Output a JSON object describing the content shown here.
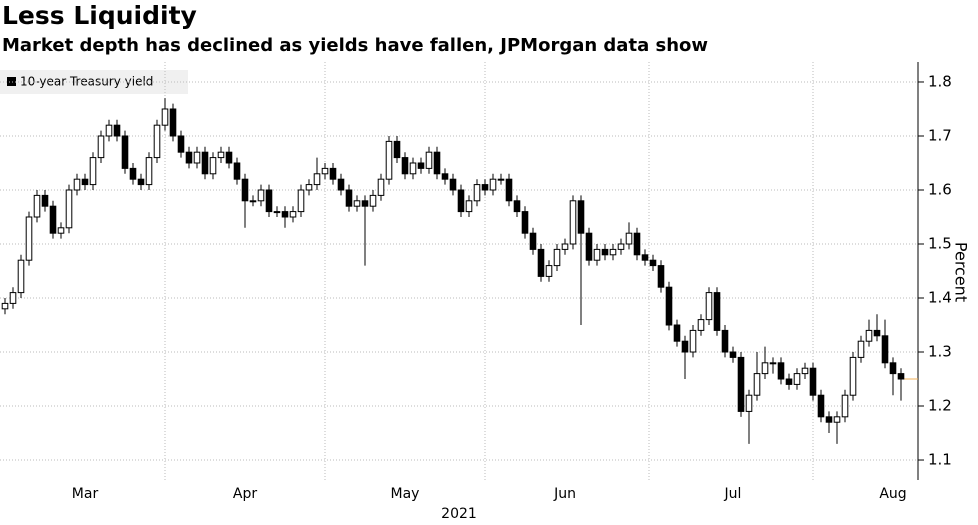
{
  "chart_data": {
    "type": "candlestick",
    "title": "Less Liquidity",
    "subtitle": "Market depth has declined as yields have fallen, JPMorgan data show",
    "ylabel": "Percent",
    "xlabel": "2021",
    "series": [
      {
        "name": "10-year Treasury yield",
        "color": "#000000"
      }
    ],
    "up_color": "#ffffff",
    "down_color": "#000000",
    "last_line_color": "#f0b25a",
    "categories": [
      null,
      null,
      null,
      null,
      null,
      null,
      null,
      null,
      null,
      null,
      "Mar",
      null,
      null,
      null,
      null,
      null,
      null,
      null,
      null,
      null,
      null,
      null,
      null,
      null,
      null,
      null,
      null,
      null,
      null,
      null,
      "Apr",
      null,
      null,
      null,
      null,
      null,
      null,
      null,
      null,
      null,
      null,
      null,
      null,
      null,
      null,
      null,
      null,
      null,
      null,
      null,
      "May",
      null,
      null,
      null,
      null,
      null,
      null,
      null,
      null,
      null,
      null,
      null,
      null,
      null,
      null,
      null,
      null,
      null,
      null,
      null,
      "Jun",
      null,
      null,
      null,
      null,
      null,
      null,
      null,
      null,
      null,
      null,
      null,
      null,
      null,
      null,
      null,
      null,
      null,
      null,
      null,
      null,
      "Jul",
      null,
      null,
      null,
      null,
      null,
      null,
      null,
      null,
      null,
      null,
      null,
      null,
      null,
      null,
      null,
      null,
      null,
      null,
      null,
      "Aug",
      null
    ],
    "open": [
      1.38,
      1.39,
      1.41,
      1.47,
      1.55,
      1.59,
      1.57,
      1.52,
      1.53,
      1.6,
      1.62,
      1.61,
      1.66,
      1.7,
      1.72,
      1.7,
      1.64,
      1.62,
      1.61,
      1.66,
      1.72,
      1.75,
      1.7,
      1.67,
      1.65,
      1.67,
      1.63,
      1.66,
      1.67,
      1.65,
      1.62,
      1.58,
      1.58,
      1.6,
      1.56,
      1.56,
      1.55,
      1.56,
      1.6,
      1.61,
      1.63,
      1.64,
      1.62,
      1.6,
      1.57,
      1.58,
      1.57,
      1.59,
      1.62,
      1.69,
      1.66,
      1.63,
      1.65,
      1.64,
      1.67,
      1.63,
      1.62,
      1.6,
      1.56,
      1.58,
      1.61,
      1.6,
      1.62,
      1.62,
      1.58,
      1.56,
      1.52,
      1.49,
      1.44,
      1.46,
      1.49,
      1.5,
      1.58,
      1.52,
      1.47,
      1.49,
      1.48,
      1.49,
      1.5,
      1.52,
      1.48,
      1.47,
      1.46,
      1.42,
      1.35,
      1.32,
      1.3,
      1.34,
      1.36,
      1.41,
      1.34,
      1.3,
      1.29,
      1.19,
      1.22,
      1.26,
      1.28,
      1.28,
      1.25,
      1.24,
      1.26,
      1.27,
      1.22,
      1.18,
      1.17,
      1.18,
      1.22,
      1.29,
      1.32,
      1.34,
      1.33,
      1.28,
      1.26
    ],
    "high": [
      1.4,
      1.42,
      1.48,
      1.56,
      1.6,
      1.6,
      1.58,
      1.54,
      1.61,
      1.63,
      1.63,
      1.67,
      1.71,
      1.73,
      1.73,
      1.71,
      1.65,
      1.63,
      1.67,
      1.73,
      1.77,
      1.76,
      1.71,
      1.68,
      1.68,
      1.68,
      1.67,
      1.68,
      1.68,
      1.66,
      1.63,
      1.59,
      1.61,
      1.61,
      1.57,
      1.57,
      1.57,
      1.61,
      1.62,
      1.66,
      1.65,
      1.65,
      1.63,
      1.61,
      1.59,
      1.59,
      1.6,
      1.63,
      1.7,
      1.7,
      1.67,
      1.66,
      1.66,
      1.68,
      1.68,
      1.64,
      1.63,
      1.61,
      1.59,
      1.62,
      1.62,
      1.63,
      1.63,
      1.63,
      1.59,
      1.57,
      1.53,
      1.5,
      1.47,
      1.5,
      1.51,
      1.59,
      1.59,
      1.53,
      1.5,
      1.5,
      1.5,
      1.51,
      1.54,
      1.53,
      1.49,
      1.48,
      1.47,
      1.43,
      1.36,
      1.33,
      1.35,
      1.37,
      1.42,
      1.42,
      1.35,
      1.31,
      1.3,
      1.23,
      1.3,
      1.31,
      1.29,
      1.29,
      1.26,
      1.27,
      1.28,
      1.28,
      1.23,
      1.19,
      1.19,
      1.23,
      1.3,
      1.33,
      1.36,
      1.37,
      1.36,
      1.29,
      1.27
    ],
    "low": [
      1.37,
      1.38,
      1.4,
      1.46,
      1.54,
      1.56,
      1.51,
      1.51,
      1.52,
      1.59,
      1.6,
      1.6,
      1.65,
      1.69,
      1.69,
      1.63,
      1.61,
      1.6,
      1.6,
      1.65,
      1.71,
      1.69,
      1.66,
      1.64,
      1.64,
      1.62,
      1.62,
      1.65,
      1.64,
      1.61,
      1.53,
      1.57,
      1.57,
      1.55,
      1.55,
      1.53,
      1.54,
      1.55,
      1.59,
      1.6,
      1.62,
      1.61,
      1.59,
      1.56,
      1.56,
      1.46,
      1.56,
      1.58,
      1.61,
      1.65,
      1.62,
      1.62,
      1.63,
      1.63,
      1.62,
      1.61,
      1.59,
      1.55,
      1.55,
      1.57,
      1.59,
      1.59,
      1.61,
      1.57,
      1.55,
      1.51,
      1.48,
      1.43,
      1.43,
      1.45,
      1.48,
      1.49,
      1.35,
      1.46,
      1.46,
      1.47,
      1.47,
      1.48,
      1.49,
      1.47,
      1.46,
      1.45,
      1.41,
      1.34,
      1.31,
      1.25,
      1.29,
      1.33,
      1.35,
      1.33,
      1.29,
      1.28,
      1.18,
      1.13,
      1.21,
      1.25,
      1.26,
      1.24,
      1.23,
      1.23,
      1.25,
      1.21,
      1.17,
      1.15,
      1.13,
      1.17,
      1.21,
      1.28,
      1.31,
      1.32,
      1.27,
      1.22,
      1.21
    ],
    "close": [
      1.39,
      1.41,
      1.47,
      1.55,
      1.59,
      1.57,
      1.52,
      1.53,
      1.6,
      1.62,
      1.61,
      1.66,
      1.7,
      1.72,
      1.7,
      1.64,
      1.62,
      1.61,
      1.66,
      1.72,
      1.75,
      1.7,
      1.67,
      1.65,
      1.67,
      1.63,
      1.66,
      1.67,
      1.65,
      1.62,
      1.58,
      1.58,
      1.6,
      1.56,
      1.56,
      1.55,
      1.56,
      1.6,
      1.61,
      1.63,
      1.64,
      1.62,
      1.6,
      1.57,
      1.58,
      1.57,
      1.59,
      1.62,
      1.69,
      1.66,
      1.63,
      1.65,
      1.64,
      1.67,
      1.63,
      1.62,
      1.6,
      1.56,
      1.58,
      1.61,
      1.6,
      1.62,
      1.62,
      1.58,
      1.56,
      1.52,
      1.49,
      1.44,
      1.46,
      1.49,
      1.5,
      1.58,
      1.52,
      1.47,
      1.49,
      1.48,
      1.49,
      1.5,
      1.52,
      1.48,
      1.47,
      1.46,
      1.42,
      1.35,
      1.32,
      1.3,
      1.34,
      1.36,
      1.41,
      1.34,
      1.3,
      1.29,
      1.19,
      1.22,
      1.26,
      1.28,
      1.28,
      1.25,
      1.24,
      1.26,
      1.27,
      1.22,
      1.18,
      1.17,
      1.18,
      1.22,
      1.29,
      1.32,
      1.34,
      1.33,
      1.28,
      1.26,
      1.25
    ],
    "ylim": [
      1.063,
      1.837
    ],
    "yticks": [
      1.1,
      1.2,
      1.3,
      1.4,
      1.5,
      1.6,
      1.7,
      1.8
    ],
    "grid": true
  }
}
